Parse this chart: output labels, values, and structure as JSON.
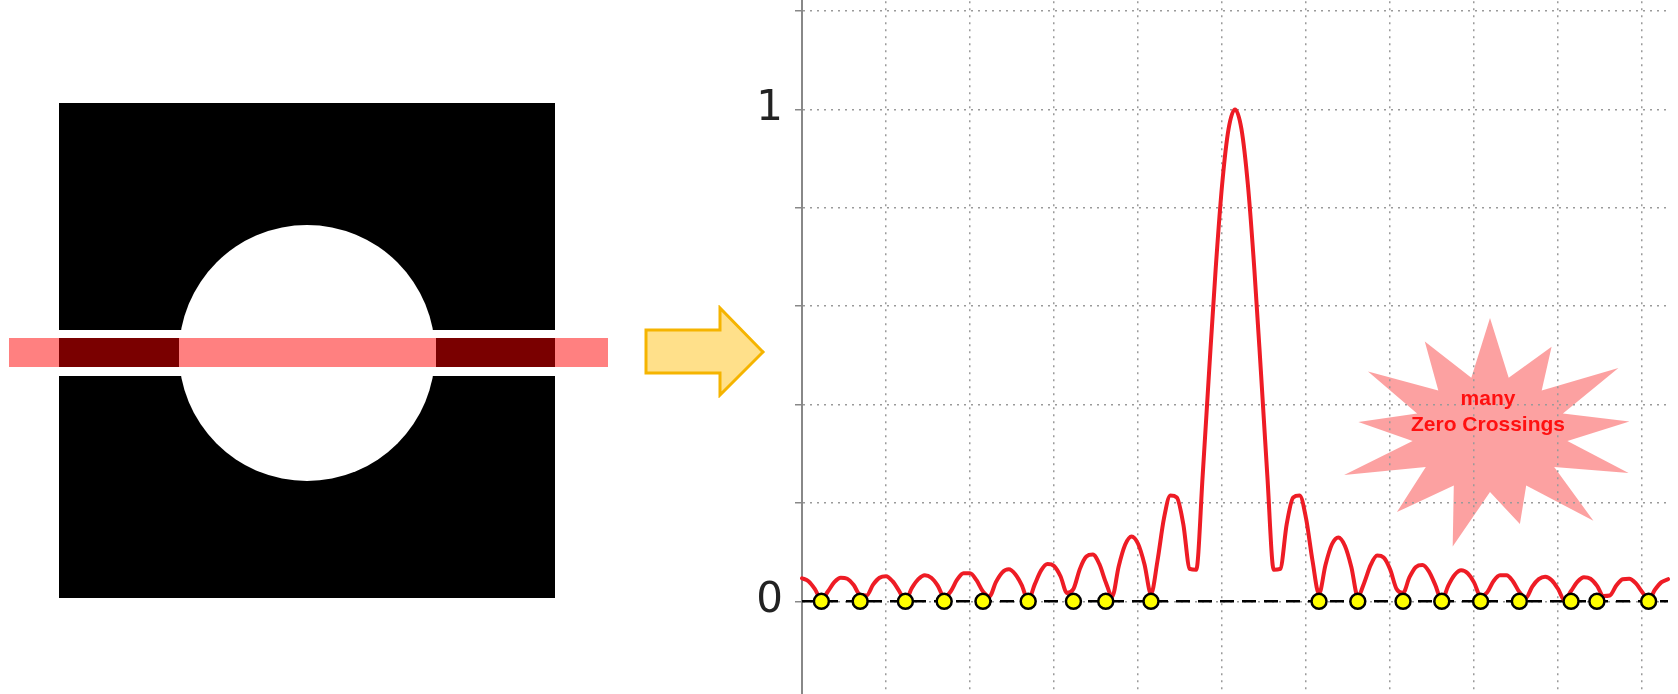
{
  "chart_data": {
    "type": "line",
    "categories": [
      null,
      null,
      null,
      null,
      null,
      null,
      null,
      null,
      null,
      null,
      null,
      null,
      null,
      null,
      null,
      null,
      null,
      null,
      null,
      null,
      null,
      null,
      null,
      null,
      null,
      null,
      null,
      null,
      null,
      null,
      null,
      null,
      null,
      null,
      null,
      null,
      null,
      null,
      null,
      null,
      null,
      null,
      null,
      null,
      null,
      null,
      null,
      null,
      null,
      null,
      null,
      null,
      null,
      null,
      null,
      null,
      null,
      null,
      null,
      null,
      null,
      null,
      null,
      null,
      null,
      null,
      null,
      null,
      null,
      null,
      null,
      null,
      null,
      null,
      null,
      null,
      null,
      null,
      null,
      null,
      null,
      null,
      null,
      null,
      null,
      null,
      null,
      null,
      null,
      null,
      null,
      null,
      null,
      null,
      null,
      null,
      null,
      null,
      null,
      null,
      null,
      null,
      null,
      null,
      null,
      null,
      null,
      null,
      null,
      null,
      null,
      null,
      null,
      null,
      null,
      null,
      null,
      null,
      null,
      null,
      null,
      null,
      null,
      null,
      null,
      null,
      null,
      null,
      null,
      null,
      null,
      null,
      null,
      null,
      null
    ],
    "series": [
      {
        "color": "#ee1c25",
        "marker": "none",
        "values": [
          0.047,
          0.041,
          0.025,
          0.003,
          0.02,
          0.039,
          0.048,
          0.046,
          0.033,
          0.013,
          0.012,
          0.034,
          0.048,
          0.051,
          0.041,
          0.022,
          0.002,
          0.027,
          0.045,
          0.053,
          0.048,
          0.032,
          0.008,
          0.02,
          0.044,
          0.057,
          0.057,
          0.043,
          0.02,
          0.01,
          0.039,
          0.059,
          0.065,
          0.055,
          0.033,
          0.002,
          0.034,
          0.063,
          0.076,
          0.072,
          0.051,
          0.017,
          0.025,
          0.066,
          0.091,
          0.095,
          0.076,
          0.039,
          0.01,
          0.071,
          0.115,
          0.132,
          0.117,
          0.075,
          0.015,
          0.082,
          0.168,
          0.215,
          0.211,
          0.157,
          0.066,
          0.064,
          0.256,
          0.469,
          0.674,
          0.846,
          0.96,
          1,
          0.96,
          0.846,
          0.674,
          0.469,
          0.256,
          0.064,
          0.066,
          0.157,
          0.211,
          0.215,
          0.168,
          0.082,
          0.015,
          0.074,
          0.116,
          0.13,
          0.113,
          0.07,
          0.01,
          0.038,
          0.074,
          0.093,
          0.089,
          0.065,
          0.025,
          0.017,
          0.049,
          0.07,
          0.074,
          0.061,
          0.033,
          0.002,
          0.032,
          0.054,
          0.063,
          0.057,
          0.038,
          0.01,
          0.018,
          0.041,
          0.053,
          0.053,
          0.041,
          0.019,
          0.007,
          0.03,
          0.045,
          0.05,
          0.043,
          0.025,
          0.002,
          0.021,
          0.04,
          0.049,
          0.046,
          0.032,
          0.011,
          0.012,
          0.032,
          0.045,
          0.046,
          0.037,
          0.019,
          0.003,
          0.024,
          0.039,
          0.045
        ]
      },
      {
        "type": "scatter",
        "color": "#ffff00",
        "marker": "circle",
        "values": [
          null,
          null,
          null,
          0,
          null,
          null,
          null,
          null,
          null,
          0,
          null,
          null,
          null,
          null,
          null,
          null,
          0,
          null,
          null,
          null,
          null,
          null,
          0,
          null,
          null,
          null,
          null,
          null,
          0,
          null,
          null,
          null,
          null,
          null,
          null,
          0,
          null,
          null,
          null,
          null,
          null,
          null,
          0,
          null,
          null,
          null,
          null,
          0,
          null,
          null,
          null,
          null,
          null,
          null,
          0,
          null,
          null,
          null,
          null,
          null,
          null,
          null,
          null,
          null,
          null,
          null,
          null,
          null,
          null,
          null,
          null,
          null,
          null,
          null,
          null,
          null,
          null,
          null,
          null,
          null,
          0,
          null,
          null,
          null,
          null,
          null,
          0,
          null,
          null,
          null,
          null,
          null,
          null,
          0,
          null,
          null,
          null,
          null,
          null,
          0,
          null,
          null,
          null,
          null,
          null,
          0,
          null,
          null,
          null,
          null,
          null,
          0,
          null,
          null,
          null,
          null,
          null,
          null,
          null,
          0,
          null,
          null,
          null,
          0,
          null,
          null,
          null,
          null,
          null,
          null,
          null,
          0,
          null,
          null,
          null
        ]
      }
    ],
    "ylim": [
      -0.19,
      1.22
    ],
    "yticks": [
      0,
      {
        "value": 0.2,
        "label": null
      },
      {
        "value": 0.4,
        "label": null
      },
      {
        "value": 0.6,
        "label": null
      },
      {
        "value": 0.8,
        "label": null
      },
      1,
      {
        "value": 1.2,
        "label": null
      }
    ],
    "grid": true,
    "tick_labels": "y",
    "ref_lines": [
      {
        "axis": "y",
        "value": 0,
        "color": "#000000",
        "line_style": "dashed"
      }
    ],
    "annotations": [
      "many\nZero Crossings"
    ]
  }
}
